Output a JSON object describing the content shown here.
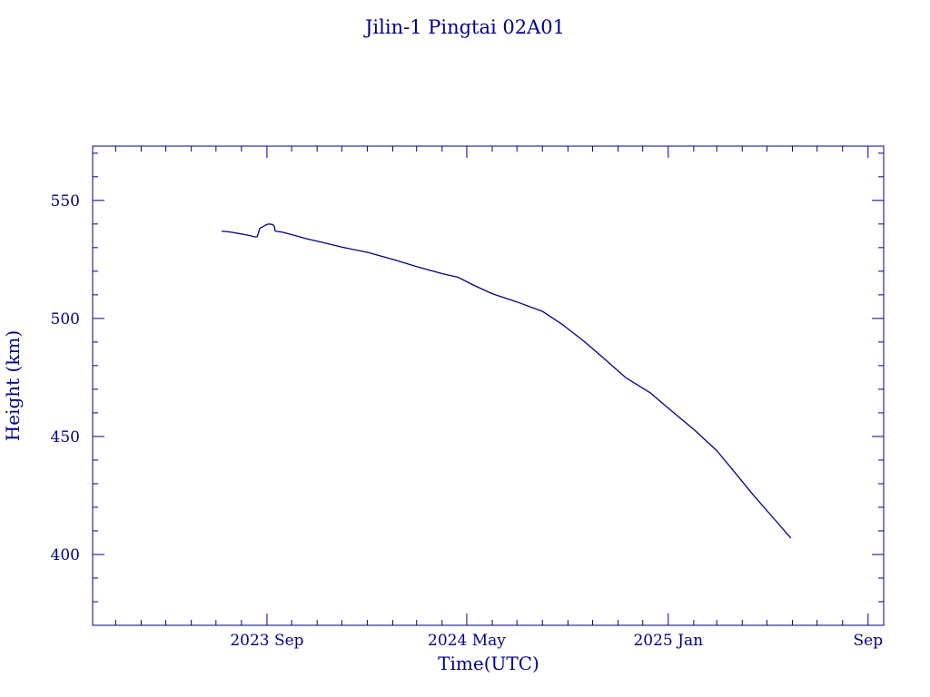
{
  "chart_data": {
    "type": "line",
    "title": "Jilin-1 Pingtai 02A01",
    "xlabel": "Time(UTC)",
    "ylabel": "Height (km)",
    "xlim": [
      "2023-02-01",
      "2025-09-20"
    ],
    "ylim": [
      370,
      573
    ],
    "x_ticks": [
      {
        "date": "2023-09-01",
        "label": "2023 Sep"
      },
      {
        "date": "2024-05-01",
        "label": "2024 May"
      },
      {
        "date": "2025-01-01",
        "label": "2025 Jan"
      },
      {
        "date": "2025-09-01",
        "label": "Sep"
      }
    ],
    "y_ticks": [
      400,
      450,
      500,
      550
    ],
    "grid": false,
    "colors": {
      "axis": "#00008b",
      "line": "#00008b",
      "background": "#ffffff"
    },
    "series": [
      {
        "x": [
          "2023-07-08",
          "2023-07-20",
          "2023-08-01",
          "2023-08-12",
          "2023-08-18",
          "2023-08-20",
          "2023-08-21",
          "2023-08-23",
          "2023-08-25",
          "2023-08-28",
          "2023-08-30",
          "2023-09-03",
          "2023-09-08",
          "2023-09-10",
          "2023-09-11",
          "2023-09-20",
          "2023-10-01",
          "2023-10-20",
          "2023-11-10",
          "2023-12-01",
          "2024-01-01",
          "2024-02-01",
          "2024-03-01",
          "2024-04-01",
          "2024-04-20",
          "2024-05-10",
          "2024-06-01",
          "2024-07-01",
          "2024-08-01",
          "2024-08-25",
          "2024-09-20",
          "2024-10-15",
          "2024-11-10",
          "2024-12-10",
          "2025-01-01",
          "2025-02-01",
          "2025-03-01",
          "2025-03-20",
          "2025-04-15",
          "2025-05-10",
          "2025-05-30"
        ],
        "y": [
          537,
          536.5,
          535.8,
          535,
          534.5,
          534.6,
          535.5,
          538,
          538.5,
          539,
          539.5,
          540,
          539.8,
          539,
          537,
          536.5,
          535.5,
          533.7,
          532,
          530.2,
          528,
          525,
          522,
          519,
          517.5,
          514,
          510.5,
          507,
          503,
          497.5,
          490.5,
          483,
          475,
          468.5,
          462,
          453,
          444,
          436,
          425,
          415,
          407
        ]
      }
    ]
  }
}
